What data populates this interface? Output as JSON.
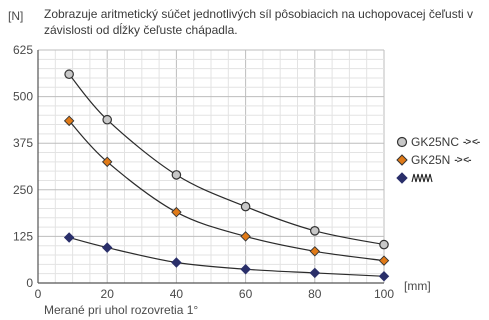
{
  "chart_data": {
    "type": "line",
    "title": "Zobrazuje aritmetický súčet jednotlivých síl pôsobiacich na uchopovacej čeľusti v závislosti od dĺžky čeľuste chápadla.",
    "ylabel": "[N]",
    "xlabel": "[mm]",
    "footnote": "Merané pri uhol rozovretia 1°",
    "xlim": [
      0,
      100
    ],
    "ylim": [
      0,
      625
    ],
    "xticks": [
      0,
      20,
      40,
      60,
      80,
      100
    ],
    "yticks": [
      0,
      125,
      250,
      375,
      500,
      625
    ],
    "grid": true,
    "legend_position": "right",
    "series": [
      {
        "name": "GK25NC",
        "legend_suffix": "-> <-",
        "marker": "circle",
        "color": "#c8c8c8",
        "x": [
          9,
          20,
          40,
          60,
          80,
          100
        ],
        "values": [
          560,
          438,
          290,
          205,
          140,
          103
        ]
      },
      {
        "name": "GK25N",
        "legend_suffix": "-> <-",
        "marker": "diamond",
        "color": "#e07a18",
        "x": [
          9,
          20,
          40,
          60,
          80,
          100
        ],
        "values": [
          435,
          325,
          190,
          125,
          85,
          60
        ]
      },
      {
        "name": "",
        "legend_glyph": "spring",
        "marker": "diamond",
        "color": "#2a2f6a",
        "x": [
          9,
          20,
          40,
          60,
          80,
          100
        ],
        "values": [
          122,
          95,
          55,
          37,
          27,
          18
        ]
      }
    ]
  }
}
